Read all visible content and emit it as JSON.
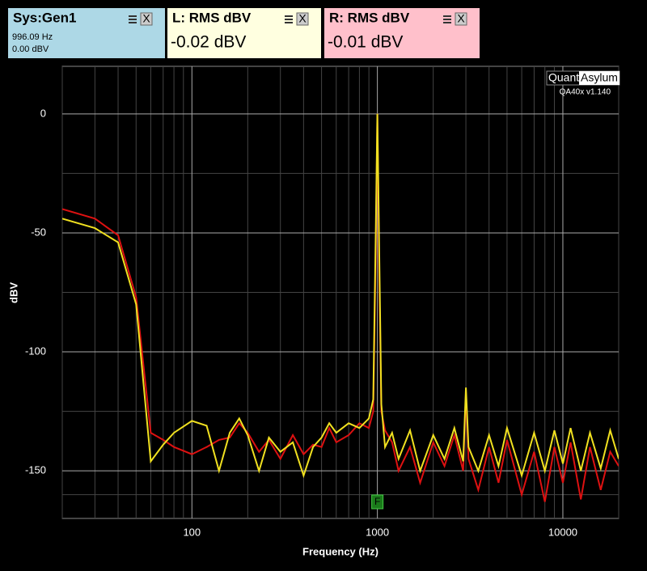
{
  "panels": [
    {
      "title": "Sys:Gen1",
      "close": "X",
      "lines": [
        "996.09 Hz",
        "0.00 dBV"
      ],
      "color": "#add8e6"
    },
    {
      "title": "L: RMS dBV",
      "close": "X",
      "lines": [
        "-0.02 dBV"
      ],
      "color": "#ffffe0"
    },
    {
      "title": "R: RMS dBV",
      "close": "X",
      "lines": [
        "-0.01 dBV"
      ],
      "color": "#ffc0cb"
    }
  ],
  "chart_data": {
    "type": "line",
    "logo": [
      "Quant",
      "Asylum"
    ],
    "version": "QA40x v1.140",
    "x_label": "Frequency (Hz)",
    "y_label": "dBV",
    "x_log": true,
    "grid": true,
    "xlim": [
      20,
      20000
    ],
    "ylim": [
      -170,
      20
    ],
    "xticks": [
      100,
      1000,
      10000
    ],
    "xminor": [
      20,
      30,
      40,
      50,
      60,
      70,
      80,
      90,
      200,
      300,
      400,
      500,
      600,
      700,
      800,
      900,
      2000,
      3000,
      4000,
      5000,
      6000,
      7000,
      8000,
      9000,
      20000
    ],
    "yticks": [
      0,
      -50,
      -100,
      -150
    ],
    "yminor": [
      -25,
      -75,
      -125,
      -160
    ],
    "marker": {
      "x": 1000,
      "label": "F",
      "color": "#1a7a1a"
    },
    "x": [
      20,
      30,
      40,
      50,
      60,
      70,
      80,
      100,
      120,
      140,
      160,
      180,
      200,
      230,
      260,
      300,
      350,
      400,
      450,
      500,
      550,
      600,
      700,
      800,
      900,
      950,
      980,
      1000,
      1020,
      1050,
      1100,
      1200,
      1300,
      1500,
      1700,
      2000,
      2300,
      2600,
      2900,
      3000,
      3100,
      3500,
      4000,
      4500,
      5000,
      6000,
      7000,
      8000,
      9000,
      10000,
      11000,
      12500,
      14000,
      16000,
      18000,
      20000
    ],
    "series": [
      {
        "color": "#dd1111",
        "values": [
          -40,
          -44,
          -51,
          -77,
          -134,
          -137,
          -140,
          -143,
          -140,
          -137,
          -136,
          -130,
          -134,
          -142,
          -137,
          -145,
          -135,
          -143,
          -139,
          -140,
          -132,
          -138,
          -135,
          -130,
          -132,
          -125,
          -60,
          0,
          -60,
          -125,
          -133,
          -138,
          -150,
          -140,
          -155,
          -138,
          -148,
          -135,
          -150,
          -117,
          -145,
          -158,
          -140,
          -155,
          -137,
          -160,
          -142,
          -163,
          -140,
          -155,
          -138,
          -162,
          -140,
          -158,
          -142,
          -148
        ]
      },
      {
        "color": "#f0e020",
        "values": [
          -44,
          -48,
          -54,
          -80,
          -146,
          -139,
          -134,
          -129,
          -131,
          -150,
          -134,
          -128,
          -135,
          -150,
          -136,
          -142,
          -138,
          -152,
          -140,
          -136,
          -130,
          -134,
          -130,
          -132,
          -128,
          -120,
          -50,
          0,
          -50,
          -122,
          -140,
          -134,
          -145,
          -133,
          -150,
          -135,
          -145,
          -132,
          -146,
          -115,
          -140,
          -150,
          -135,
          -148,
          -132,
          -152,
          -134,
          -150,
          -133,
          -147,
          -132,
          -150,
          -134,
          -149,
          -133,
          -145
        ]
      }
    ]
  }
}
